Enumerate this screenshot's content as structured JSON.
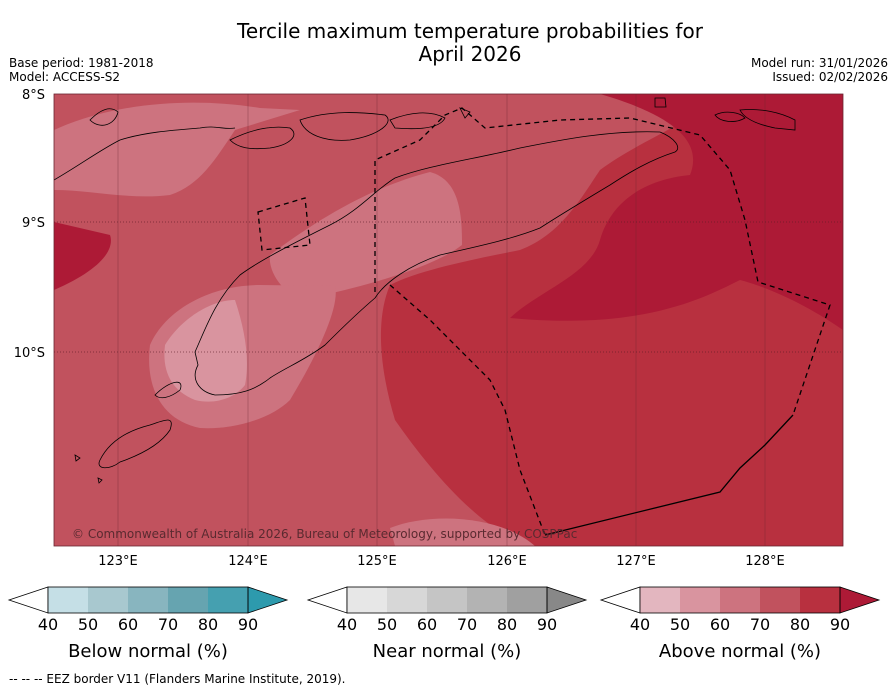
{
  "title_line1": "Tercile maximum temperature probabilities for",
  "title_line2": "April 2026",
  "base_period": "Base period: 1981-2018",
  "model": "Model: ACCESS-S2",
  "model_run": "Model run: 31/01/2026",
  "issued": "Issued: 02/02/2026",
  "lat_labels": [
    "8°S",
    "9°S",
    "10°S"
  ],
  "lon_labels": [
    "123°E",
    "124°E",
    "125°E",
    "126°E",
    "127°E",
    "128°E"
  ],
  "copyright": "© Commonwealth of Australia 2026, Bureau of Meteorology, supported by COSPPac",
  "colorbars": [
    {
      "title": "Below normal (%)",
      "ticks": [
        "40",
        "50",
        "60",
        "70",
        "80",
        "90"
      ],
      "colors": [
        "#c5dfe6",
        "#a8c8cf",
        "#88b5bf",
        "#66a4b0",
        "#45a0b0"
      ],
      "arrow_color": "#2d9aad"
    },
    {
      "title": "Near normal (%)",
      "ticks": [
        "40",
        "50",
        "60",
        "70",
        "80",
        "90"
      ],
      "colors": [
        "#e7e7e7",
        "#d7d7d7",
        "#c5c5c5",
        "#b3b3b3",
        "#a0a0a0"
      ],
      "arrow_color": "#888888"
    },
    {
      "title": "Above normal (%)",
      "ticks": [
        "40",
        "50",
        "60",
        "70",
        "80",
        "90"
      ],
      "colors": [
        "#e3b6bf",
        "#d9949f",
        "#cd737f",
        "#c1525e",
        "#b8303f"
      ],
      "arrow_color": "#ad1a36"
    }
  ],
  "footnote": "--  --  -- EEZ border V11 (Flanders Marine Institute, 2019).",
  "map_colors": {
    "band70": "#c1525e",
    "band60": "#cd737f",
    "band50": "#d9949f",
    "band80": "#b8303f",
    "band90": "#ad1a36"
  }
}
